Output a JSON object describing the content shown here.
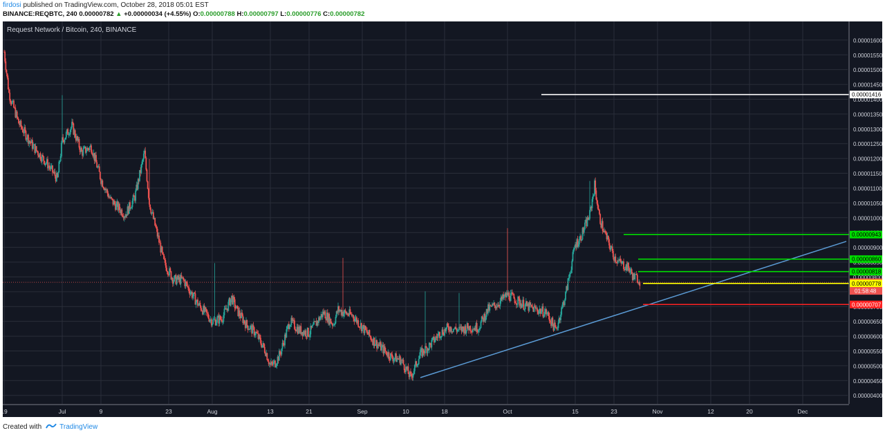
{
  "header": {
    "author": "firdosi",
    "published_text": "published on TradingView.com, October 28, 2018 05:01 EST",
    "symbol_line": "BINANCE:REQBTC, 240",
    "last_price": "0.00000782",
    "change": "+0.00000034 (+4.55%)",
    "open_label": "O:",
    "open": "0.00000788",
    "high_label": "H:",
    "high": "0.00000797",
    "low_label": "L:",
    "low": "0.00000776",
    "close_label": "C:",
    "close": "0.00000782"
  },
  "footer": {
    "created_with": "Created with",
    "brand": "TradingView"
  },
  "colors": {
    "background": "#131722",
    "grid": "#2a2e39",
    "up_candle": "#26a69a",
    "down_candle": "#ef5350",
    "trendline": "#5b9bd5",
    "green_level": "#00dd00",
    "yellow_level": "#ffff00",
    "red_level": "#ff2222",
    "white_level": "#ffffff"
  },
  "chart_data": {
    "type": "candlestick",
    "title": "Request Network / Bitcoin, 240, BINANCE",
    "y_range": [
      3.9e-06,
      1.63e-05
    ],
    "y_ticks": [
      "0.00001600",
      "0.00001550",
      "0.00001500",
      "0.00001450",
      "0.00001400",
      "0.00001350",
      "0.00001300",
      "0.00001250",
      "0.00001200",
      "0.00001150",
      "0.00001100",
      "0.00001050",
      "0.00001000",
      "0.00000950",
      "0.00000900",
      "0.00000850",
      "0.00000800",
      "0.00000750",
      "0.00000700",
      "0.00000650",
      "0.00000600",
      "0.00000550",
      "0.00000500",
      "0.00000450",
      "0.00000400"
    ],
    "y_tick_values": [
      16.0,
      15.5,
      15.0,
      14.5,
      14.0,
      13.5,
      13.0,
      12.5,
      12.0,
      11.5,
      11.0,
      10.5,
      10.0,
      9.5,
      9.0,
      8.5,
      8.0,
      7.5,
      7.0,
      6.5,
      6.0,
      5.5,
      5.0,
      4.5,
      4.0
    ],
    "x_ticks": [
      {
        "label": "19",
        "day": 0
      },
      {
        "label": "Jul",
        "day": 12
      },
      {
        "label": "9",
        "day": 20
      },
      {
        "label": "23",
        "day": 34
      },
      {
        "label": "Aug",
        "day": 43
      },
      {
        "label": "13",
        "day": 55
      },
      {
        "label": "21",
        "day": 63
      },
      {
        "label": "Sep",
        "day": 74
      },
      {
        "label": "10",
        "day": 83
      },
      {
        "label": "18",
        "day": 91
      },
      {
        "label": "Oct",
        "day": 104
      },
      {
        "label": "15",
        "day": 118
      },
      {
        "label": "23",
        "day": 126
      },
      {
        "label": "Nov",
        "day": 135
      },
      {
        "label": "12",
        "day": 146
      },
      {
        "label": "20",
        "day": 154
      },
      {
        "label": "Dec",
        "day": 165
      }
    ],
    "x_range_days": [
      0,
      174
    ],
    "price_path_days": [
      0,
      1,
      3,
      6,
      9,
      11,
      12,
      14,
      16,
      18,
      20,
      22,
      25,
      27,
      29,
      30,
      32,
      33,
      35,
      37,
      40,
      43,
      45,
      47,
      48,
      50,
      52,
      54,
      55,
      56,
      57,
      59,
      61,
      63,
      66,
      68,
      69,
      70,
      72,
      74,
      76,
      78,
      80,
      82,
      84,
      85,
      86,
      88,
      90,
      92,
      94,
      96,
      98,
      100,
      102,
      104,
      106,
      108,
      110,
      112,
      113,
      114,
      115,
      116,
      118,
      119,
      121,
      122,
      123,
      124,
      125,
      126,
      127,
      128,
      129,
      130,
      131,
      131.5
    ],
    "price_path_values": [
      15.6,
      14.2,
      13.2,
      12.4,
      11.8,
      11.3,
      12.6,
      13.1,
      12.2,
      12.4,
      11.3,
      10.6,
      10.1,
      10.7,
      12.2,
      10.5,
      9.2,
      8.5,
      7.9,
      7.9,
      7.1,
      6.5,
      6.6,
      7.3,
      6.9,
      6.4,
      6.1,
      5.5,
      5.0,
      5.1,
      5.4,
      6.5,
      6.2,
      6.1,
      6.8,
      6.4,
      6.9,
      6.8,
      6.7,
      6.3,
      5.9,
      5.6,
      5.3,
      5.2,
      4.6,
      5.0,
      5.4,
      5.7,
      6.1,
      6.3,
      6.2,
      6.3,
      6.3,
      6.9,
      7.1,
      7.4,
      7.2,
      7.0,
      6.9,
      6.8,
      6.5,
      6.2,
      6.8,
      7.4,
      9.1,
      9.3,
      10.1,
      11.1,
      10.0,
      9.5,
      9.1,
      8.7,
      8.5,
      8.4,
      8.3,
      8.0,
      7.95,
      7.82
    ],
    "last_price": 7.82,
    "trendline": {
      "from": {
        "day": 86,
        "price": 4.6
      },
      "to": {
        "day": 174,
        "price": 9.2
      }
    },
    "levels": [
      {
        "label": "0.00001416",
        "price": 14.16,
        "color": "white",
        "from_day": 111
      },
      {
        "label": "0.00000943",
        "price": 9.43,
        "color": "green",
        "from_day": 128
      },
      {
        "label": "0.00000860",
        "price": 8.6,
        "color": "green",
        "from_day": 131
      },
      {
        "label": "0.00000818",
        "price": 8.18,
        "color": "green",
        "from_day": 131
      },
      {
        "label": "0.00000782",
        "price": 7.82,
        "color": "lastprice",
        "from_day": 0
      },
      {
        "label": "0.00000778",
        "price": 7.78,
        "color": "yellow",
        "from_day": 132
      },
      {
        "label": "0.00000707",
        "price": 7.07,
        "color": "red",
        "from_day": 132
      }
    ],
    "countdown": "01:58:48"
  }
}
